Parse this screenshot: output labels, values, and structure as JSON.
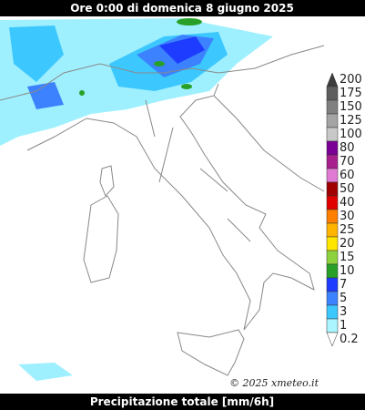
{
  "header": {
    "title": "Ore 0:00 di domenica 8 giugno 2025"
  },
  "legend": {
    "items": [
      {
        "label": "200",
        "color": "#3c3c3c"
      },
      {
        "label": "175",
        "color": "#5e5e5e"
      },
      {
        "label": "150",
        "color": "#808080"
      },
      {
        "label": "125",
        "color": "#a4a4a4"
      },
      {
        "label": "100",
        "color": "#c8c8c8"
      },
      {
        "label": "80",
        "color": "#7a0096"
      },
      {
        "label": "70",
        "color": "#a8208e"
      },
      {
        "label": "60",
        "color": "#e07ad2"
      },
      {
        "label": "50",
        "color": "#a00000"
      },
      {
        "label": "40",
        "color": "#e00000"
      },
      {
        "label": "30",
        "color": "#ff7f00"
      },
      {
        "label": "25",
        "color": "#ffb400"
      },
      {
        "label": "20",
        "color": "#ffe600"
      },
      {
        "label": "15",
        "color": "#8cd23c"
      },
      {
        "label": "10",
        "color": "#28a028"
      },
      {
        "label": "7",
        "color": "#1e3cff"
      },
      {
        "label": "5",
        "color": "#3c82ff"
      },
      {
        "label": "3",
        "color": "#3cc8ff"
      },
      {
        "label": "1",
        "color": "#aaf5ff"
      },
      {
        "label": "0.2",
        "color": "#ffffff"
      }
    ]
  },
  "credit": "© 2025 xmeteo.it",
  "footer": {
    "label": "Precipitazione totale [mm/6h]"
  }
}
